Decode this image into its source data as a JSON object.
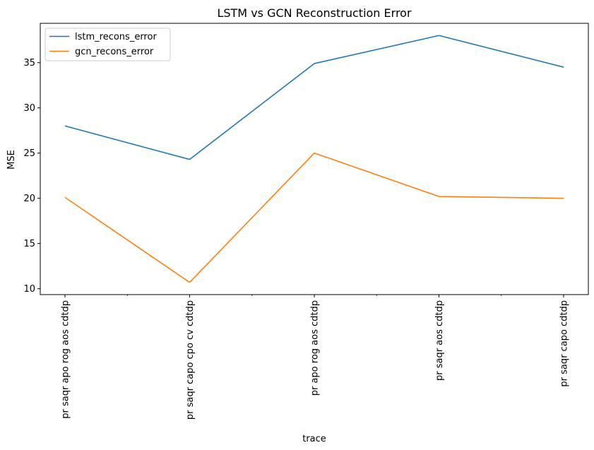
{
  "chart_data": {
    "type": "line",
    "title": "LSTM vs GCN Reconstruction Error",
    "xlabel": "trace",
    "ylabel": "MSE",
    "categories": [
      "pr saqr apo rog aos cdtdp",
      "pr saqr capo cpo cv cdtdp",
      "pr apo rog aos cdtdp",
      "pr saqr aos cdtdp",
      "pr saqr capo cdtdp"
    ],
    "series": [
      {
        "name": "lstm_recons_error",
        "color": "#1f77b4",
        "values": [
          28.0,
          24.3,
          34.9,
          38.0,
          34.5
        ]
      },
      {
        "name": "gcn_recons_error",
        "color": "#ff7f0e",
        "values": [
          20.1,
          10.7,
          25.0,
          20.2,
          20.0
        ]
      }
    ],
    "yticks": [
      10,
      15,
      20,
      25,
      30,
      35
    ],
    "ylim": [
      9.35,
      39.35
    ],
    "grid": false,
    "legend_position": "upper-left"
  }
}
